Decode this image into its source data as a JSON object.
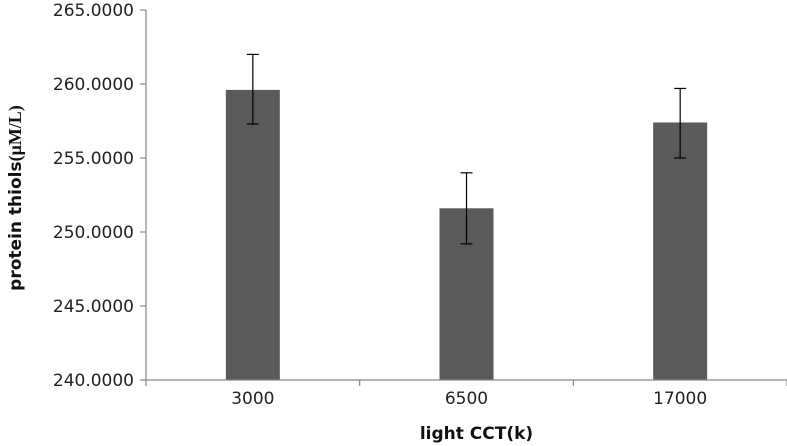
{
  "chart_data": {
    "type": "bar",
    "title": "",
    "xlabel": "light CCT(k)",
    "ylabel_prefix": "protein thiols",
    "ylabel_unit": "(μM/L)",
    "categories": [
      "3000",
      "6500",
      "17000"
    ],
    "values": [
      259.6,
      251.6,
      257.4
    ],
    "error_low": [
      257.3,
      249.2,
      255.0
    ],
    "error_high": [
      262.0,
      254.0,
      259.7
    ],
    "ylim": [
      240,
      265
    ],
    "yticks": [
      240,
      245,
      250,
      255,
      260,
      265
    ],
    "ytick_labels": [
      "240.0000",
      "245.0000",
      "250.0000",
      "255.0000",
      "260.0000",
      "265.0000"
    ],
    "grid": false,
    "legend": "none",
    "colors": {
      "bar": "#5a5a5a",
      "axis": "#878787",
      "error_bar": "#000000"
    }
  }
}
